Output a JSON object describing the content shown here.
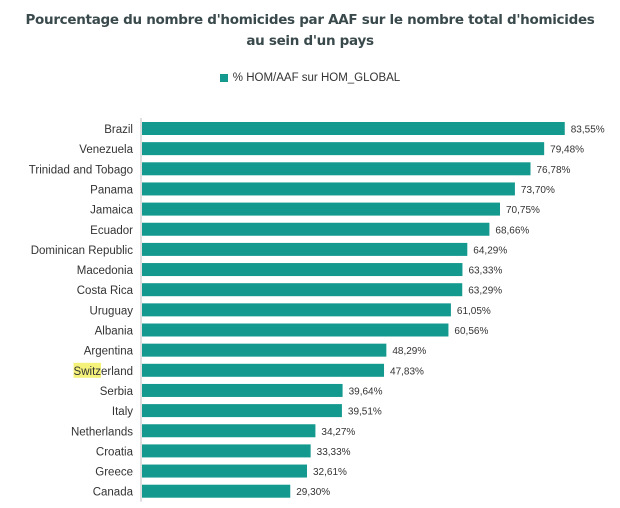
{
  "chart_data": {
    "type": "bar",
    "orientation": "horizontal",
    "title_lines": [
      "Pourcentage du nombre d'homicides par AAF sur le nombre total d'homicides",
      "au sein d'un pays"
    ],
    "legend_position": "top-center",
    "series": [
      {
        "name": "% HOM/AAF sur HOM_GLOBAL",
        "color": "#14998f",
        "values": [
          83.55,
          79.48,
          76.78,
          73.7,
          70.75,
          68.66,
          64.29,
          63.33,
          63.29,
          61.05,
          60.56,
          48.29,
          47.83,
          39.64,
          39.51,
          34.27,
          33.33,
          32.61,
          29.3
        ]
      }
    ],
    "categories": [
      "Brazil",
      "Venezuela",
      "Trinidad and Tobago",
      "Panama",
      "Jamaica",
      "Ecuador",
      "Dominican Republic",
      "Macedonia",
      "Costa Rica",
      "Uruguay",
      "Albania",
      "Argentina",
      "Switzerland",
      "Serbia",
      "Italy",
      "Netherlands",
      "Croatia",
      "Greece",
      "Canada"
    ],
    "value_labels": [
      "83,55%",
      "79,48%",
      "76,78%",
      "73,70%",
      "70,75%",
      "68,66%",
      "64,29%",
      "63,33%",
      "63,29%",
      "61,05%",
      "60,56%",
      "48,29%",
      "47,83%",
      "39,64%",
      "39,51%",
      "34,27%",
      "33,33%",
      "32,61%",
      "29,30%"
    ],
    "highlight": {
      "category": "Switzerland",
      "text": "Switz",
      "color": "#f4f27a"
    },
    "grid": false
  }
}
